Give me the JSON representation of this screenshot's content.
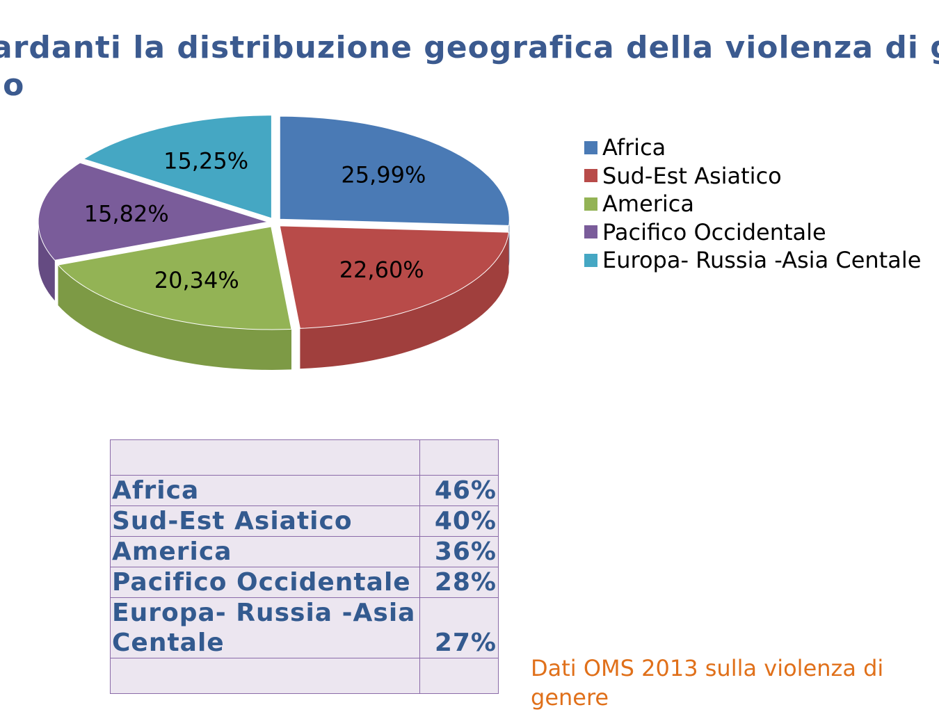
{
  "title": {
    "line1": "ardanti la distribuzione geografica della violenza di g",
    "line2": "lo"
  },
  "chart_data": {
    "type": "pie",
    "categories": [
      "Africa",
      "Sud-Est Asiatico",
      "America",
      "Pacifico Occidentale",
      "Europa- Russia -Asia Centale"
    ],
    "values": [
      25.99,
      22.6,
      20.34,
      15.82,
      15.25
    ],
    "data_labels": [
      "25,99%",
      "22,60%",
      "20,34%",
      "15,82%",
      "15,25%"
    ],
    "colors": [
      "#4a7ab5",
      "#b84b49",
      "#93b355",
      "#7a5c9a",
      "#45a7c3"
    ],
    "side_colors": [
      "#3a6293",
      "#a03f3d",
      "#7d9a45",
      "#654b82",
      "#3a8fa7"
    ],
    "style": "3d-exploded",
    "legend": "right"
  },
  "legend": [
    {
      "label": "Africa",
      "color": "#4a7ab5"
    },
    {
      "label": "Sud-Est Asiatico",
      "color": "#b84b49"
    },
    {
      "label": "America",
      "color": "#93b355"
    },
    {
      "label": "Pacifico Occidentale",
      "color": "#7a5c9a"
    },
    {
      "label": "Europa- Russia -Asia Centale",
      "color": "#45a7c3"
    }
  ],
  "table": {
    "rows": [
      {
        "name": "Africa",
        "value": "46%"
      },
      {
        "name": "Sud-Est Asiatico",
        "value": "40%"
      },
      {
        "name": "America",
        "value": "36%"
      },
      {
        "name": "Pacifico Occidentale",
        "value": "28%"
      },
      {
        "name_line1": "Europa- Russia -Asia",
        "name_line2": "Centale",
        "value": "27%"
      }
    ]
  },
  "source_note": "Dati OMS  2013 sulla violenza di genere"
}
